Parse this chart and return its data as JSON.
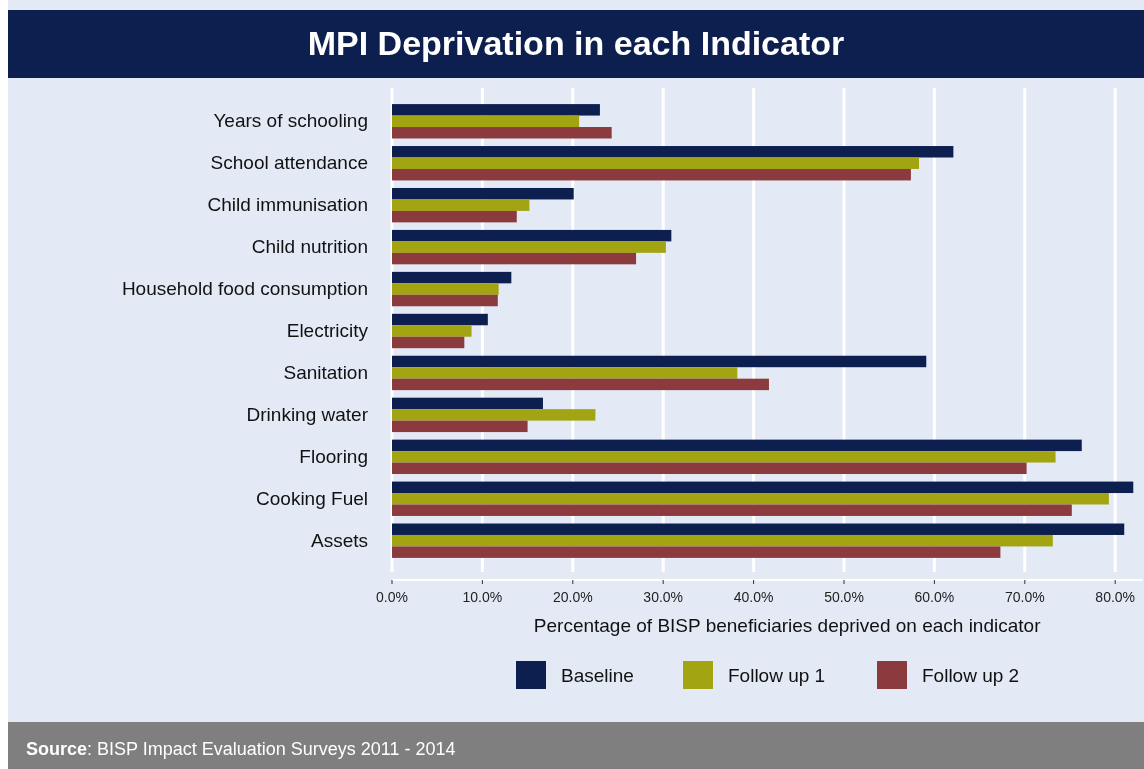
{
  "chart_data": {
    "type": "bar",
    "orientation": "horizontal",
    "title": "MPI Deprivation in each Indicator",
    "xlabel": "Percentage of BISP beneficiaries deprived on each indicator",
    "categories": [
      "Years of schooling",
      "School attendance",
      "Child immunisation",
      "Child nutrition",
      "Household food consumption",
      "Electricity",
      "Sanitation",
      "Drinking water",
      "Flooring",
      "Cooking Fuel",
      "Assets"
    ],
    "series": [
      {
        "name": "Baseline",
        "color": "#0d1f4f",
        "values": [
          23.0,
          62.1,
          20.1,
          30.9,
          13.2,
          10.6,
          59.1,
          16.7,
          76.3,
          82.0,
          81.0
        ]
      },
      {
        "name": "Follow up 1",
        "color": "#a2a511",
        "values": [
          20.7,
          58.3,
          15.2,
          30.3,
          11.8,
          8.8,
          38.2,
          22.5,
          73.4,
          79.3,
          73.1
        ]
      },
      {
        "name": "Follow up 2",
        "color": "#8b3a3e",
        "values": [
          24.3,
          57.4,
          13.8,
          27.0,
          11.7,
          8.0,
          41.7,
          15.0,
          70.2,
          75.2,
          67.3
        ]
      }
    ],
    "xlim": [
      0,
      83
    ],
    "xticks": [
      {
        "value": 0,
        "label": "0.0%"
      },
      {
        "value": 10,
        "label": "10.0%"
      },
      {
        "value": 20,
        "label": "20.0%"
      },
      {
        "value": 30,
        "label": "30.0%"
      },
      {
        "value": 40,
        "label": "40.0%"
      },
      {
        "value": 50,
        "label": "50.0%"
      },
      {
        "value": 60,
        "label": "60.0%"
      },
      {
        "value": 70,
        "label": "70.0%"
      },
      {
        "value": 80,
        "label": "80.0%"
      }
    ],
    "grid": "x",
    "legend": "bottom",
    "annotations": [
      "Source: BISP Impact Evaluation Surveys 2011 - 2014"
    ]
  }
}
